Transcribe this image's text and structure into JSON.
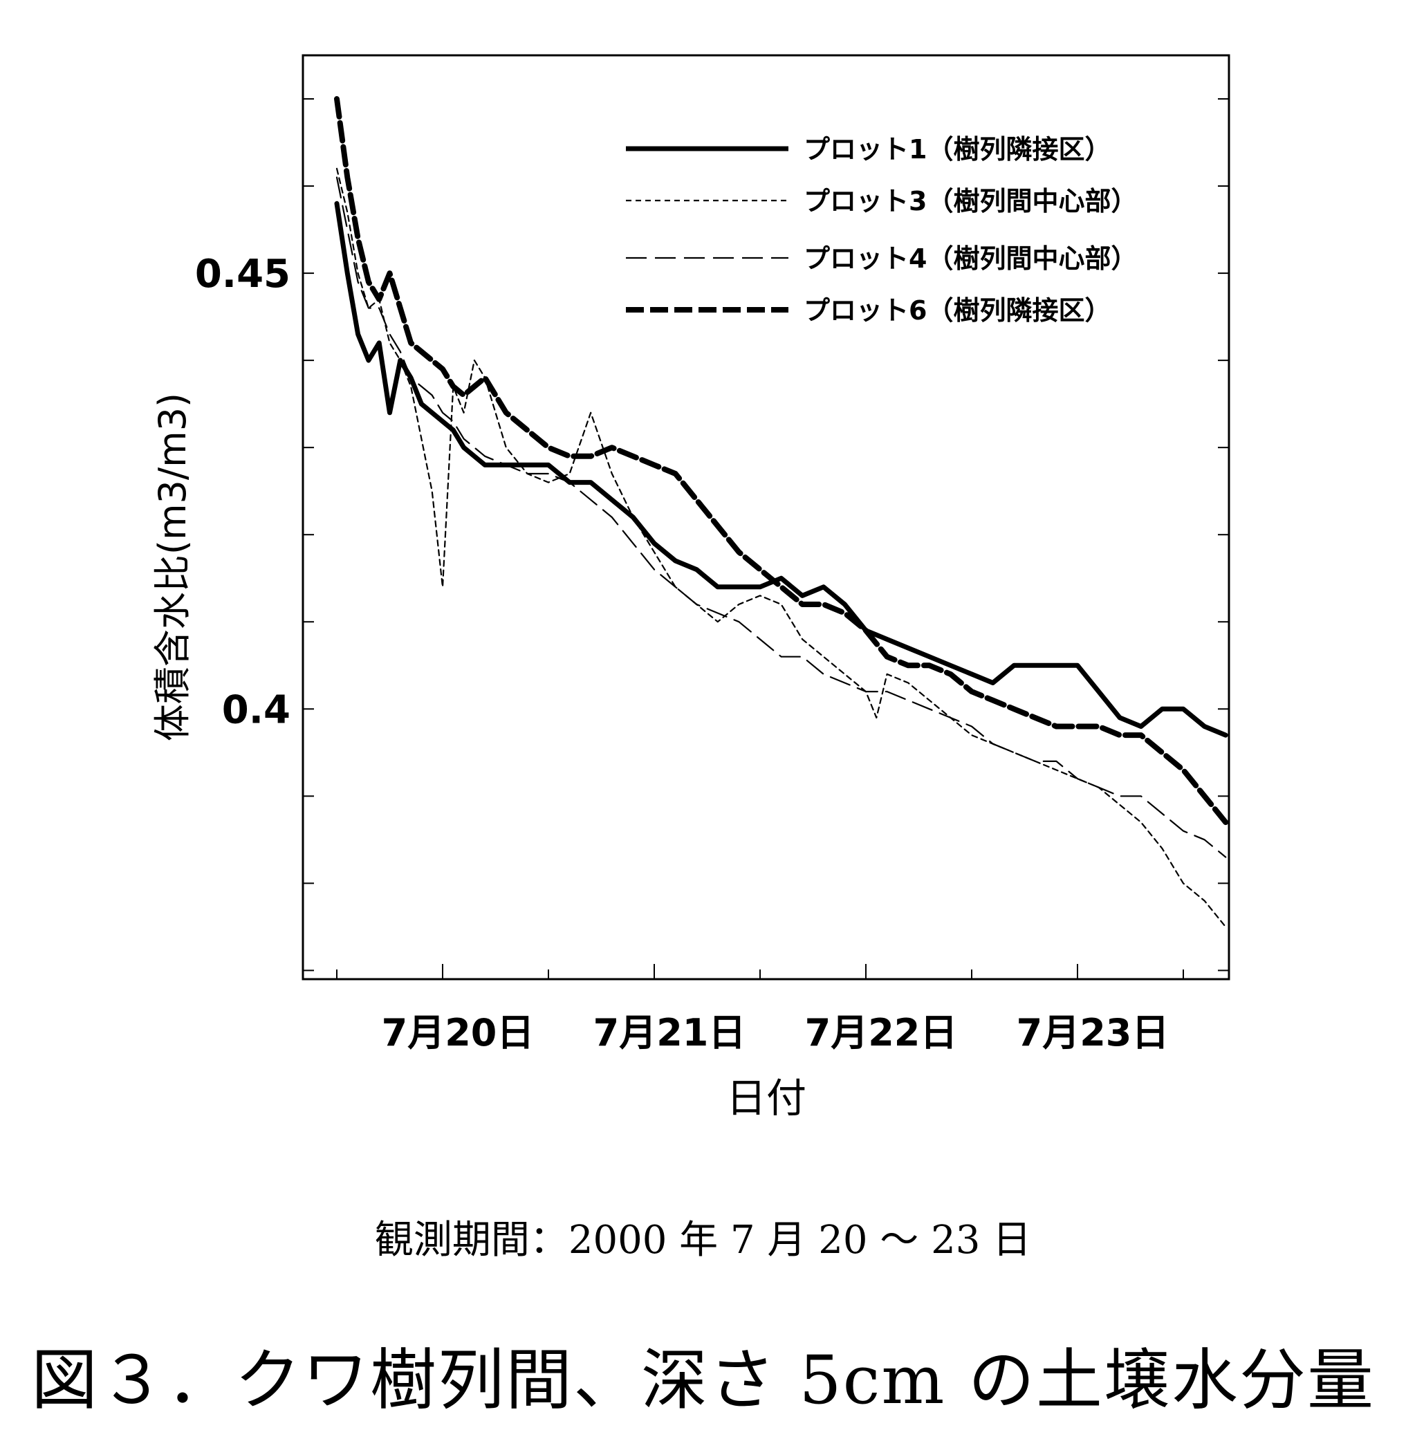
{
  "chart_data": {
    "type": "line",
    "title": "",
    "xlabel": "日付",
    "ylabel": "体積含水比(m3/m3)",
    "x_unit": "day index (0 = 7月20日 00:00)",
    "x_range": [
      -0.5,
      3.9
    ],
    "x_ticks": [
      0,
      1,
      2,
      3
    ],
    "x_tick_labels": [
      "7月20日",
      "7月21日",
      "7月22日",
      "7月23日"
    ],
    "ylim": [
      0.369,
      0.475
    ],
    "y_ticks": [
      0.45,
      0.4
    ],
    "y_tick_labels": [
      "0.45",
      "0.4"
    ],
    "grid": false,
    "legend_position": "top-right",
    "series": [
      {
        "name": "プロット1（樹列隣接区）",
        "style": "solid-thick",
        "x": [
          -0.5,
          -0.45,
          -0.4,
          -0.35,
          -0.3,
          -0.25,
          -0.2,
          -0.15,
          -0.1,
          -0.05,
          0,
          0.05,
          0.1,
          0.2,
          0.3,
          0.4,
          0.5,
          0.6,
          0.7,
          0.8,
          0.9,
          1.0,
          1.1,
          1.2,
          1.3,
          1.4,
          1.5,
          1.6,
          1.7,
          1.8,
          1.9,
          2.0,
          2.1,
          2.2,
          2.3,
          2.4,
          2.5,
          2.6,
          2.7,
          2.8,
          2.9,
          3.0,
          3.1,
          3.2,
          3.3,
          3.4,
          3.5,
          3.6,
          3.7
        ],
        "y": [
          0.458,
          0.45,
          0.443,
          0.44,
          0.442,
          0.434,
          0.44,
          0.438,
          0.435,
          0.434,
          0.433,
          0.432,
          0.43,
          0.428,
          0.428,
          0.428,
          0.428,
          0.426,
          0.426,
          0.424,
          0.422,
          0.419,
          0.417,
          0.416,
          0.414,
          0.414,
          0.414,
          0.415,
          0.413,
          0.414,
          0.412,
          0.409,
          0.408,
          0.407,
          0.406,
          0.405,
          0.404,
          0.403,
          0.405,
          0.405,
          0.405,
          0.405,
          0.402,
          0.399,
          0.398,
          0.4,
          0.4,
          0.398,
          0.397
        ]
      },
      {
        "name": "プロット3（樹列間中心部）",
        "style": "short-dash-thin",
        "x": [
          -0.5,
          -0.45,
          -0.4,
          -0.35,
          -0.3,
          -0.25,
          -0.2,
          -0.15,
          -0.05,
          0,
          0.05,
          0.1,
          0.15,
          0.2,
          0.3,
          0.4,
          0.5,
          0.6,
          0.7,
          0.8,
          0.9,
          1.0,
          1.1,
          1.2,
          1.3,
          1.4,
          1.5,
          1.6,
          1.7,
          1.8,
          1.9,
          2.0,
          2.05,
          2.1,
          2.2,
          2.3,
          2.4,
          2.5,
          2.6,
          2.7,
          2.8,
          2.9,
          3.0,
          3.1,
          3.2,
          3.3,
          3.4,
          3.5,
          3.6,
          3.7
        ],
        "y": [
          0.462,
          0.457,
          0.45,
          0.446,
          0.447,
          0.442,
          0.44,
          0.437,
          0.425,
          0.414,
          0.437,
          0.434,
          0.44,
          0.438,
          0.43,
          0.427,
          0.426,
          0.427,
          0.434,
          0.427,
          0.422,
          0.418,
          0.414,
          0.412,
          0.41,
          0.412,
          0.413,
          0.412,
          0.408,
          0.406,
          0.404,
          0.402,
          0.399,
          0.404,
          0.403,
          0.401,
          0.399,
          0.397,
          0.396,
          0.395,
          0.394,
          0.393,
          0.392,
          0.391,
          0.389,
          0.387,
          0.384,
          0.38,
          0.378,
          0.375
        ]
      },
      {
        "name": "プロット4（樹列間中心部）",
        "style": "long-dash-thin",
        "x": [
          -0.5,
          -0.45,
          -0.4,
          -0.35,
          -0.3,
          -0.25,
          -0.2,
          -0.15,
          -0.1,
          -0.05,
          0,
          0.05,
          0.1,
          0.2,
          0.3,
          0.4,
          0.5,
          0.6,
          0.7,
          0.8,
          0.9,
          1.0,
          1.1,
          1.2,
          1.3,
          1.4,
          1.5,
          1.6,
          1.7,
          1.8,
          1.9,
          2.0,
          2.1,
          2.2,
          2.3,
          2.4,
          2.5,
          2.6,
          2.7,
          2.8,
          2.9,
          3.0,
          3.1,
          3.2,
          3.3,
          3.4,
          3.5,
          3.6,
          3.7
        ],
        "y": [
          0.461,
          0.455,
          0.449,
          0.446,
          0.446,
          0.443,
          0.441,
          0.438,
          0.437,
          0.436,
          0.434,
          0.433,
          0.431,
          0.429,
          0.428,
          0.427,
          0.427,
          0.426,
          0.424,
          0.422,
          0.419,
          0.416,
          0.414,
          0.412,
          0.411,
          0.41,
          0.408,
          0.406,
          0.406,
          0.404,
          0.403,
          0.402,
          0.402,
          0.401,
          0.4,
          0.399,
          0.398,
          0.396,
          0.395,
          0.394,
          0.394,
          0.392,
          0.391,
          0.39,
          0.39,
          0.388,
          0.386,
          0.385,
          0.383
        ]
      },
      {
        "name": "プロット6（樹列隣接区）",
        "style": "dash-thick",
        "x": [
          -0.5,
          -0.45,
          -0.4,
          -0.35,
          -0.3,
          -0.25,
          -0.2,
          -0.15,
          -0.1,
          -0.05,
          0,
          0.05,
          0.1,
          0.15,
          0.2,
          0.3,
          0.4,
          0.5,
          0.6,
          0.7,
          0.8,
          0.9,
          1.0,
          1.1,
          1.2,
          1.3,
          1.4,
          1.5,
          1.6,
          1.7,
          1.8,
          1.9,
          2.0,
          2.1,
          2.2,
          2.3,
          2.4,
          2.5,
          2.6,
          2.7,
          2.8,
          2.9,
          3.0,
          3.1,
          3.2,
          3.3,
          3.4,
          3.5,
          3.6,
          3.7
        ],
        "y": [
          0.47,
          0.461,
          0.454,
          0.449,
          0.447,
          0.45,
          0.446,
          0.442,
          0.441,
          0.44,
          0.439,
          0.437,
          0.436,
          0.437,
          0.438,
          0.434,
          0.432,
          0.43,
          0.429,
          0.429,
          0.43,
          0.429,
          0.428,
          0.427,
          0.424,
          0.421,
          0.418,
          0.416,
          0.414,
          0.412,
          0.412,
          0.411,
          0.409,
          0.406,
          0.405,
          0.405,
          0.404,
          0.402,
          0.401,
          0.4,
          0.399,
          0.398,
          0.398,
          0.398,
          0.397,
          0.397,
          0.395,
          0.393,
          0.39,
          0.387
        ]
      }
    ]
  },
  "legend": [
    "プロット1（樹列隣接区）",
    "プロット3（樹列間中心部）",
    "プロット4（樹列間中心部）",
    "プロット6（樹列隣接区）"
  ],
  "observation_note": "観測期間：2000 年 7 月 20 ～ 23 日",
  "figure_caption": "図３．クワ樹列間、深さ 5cm の土壌水分量"
}
